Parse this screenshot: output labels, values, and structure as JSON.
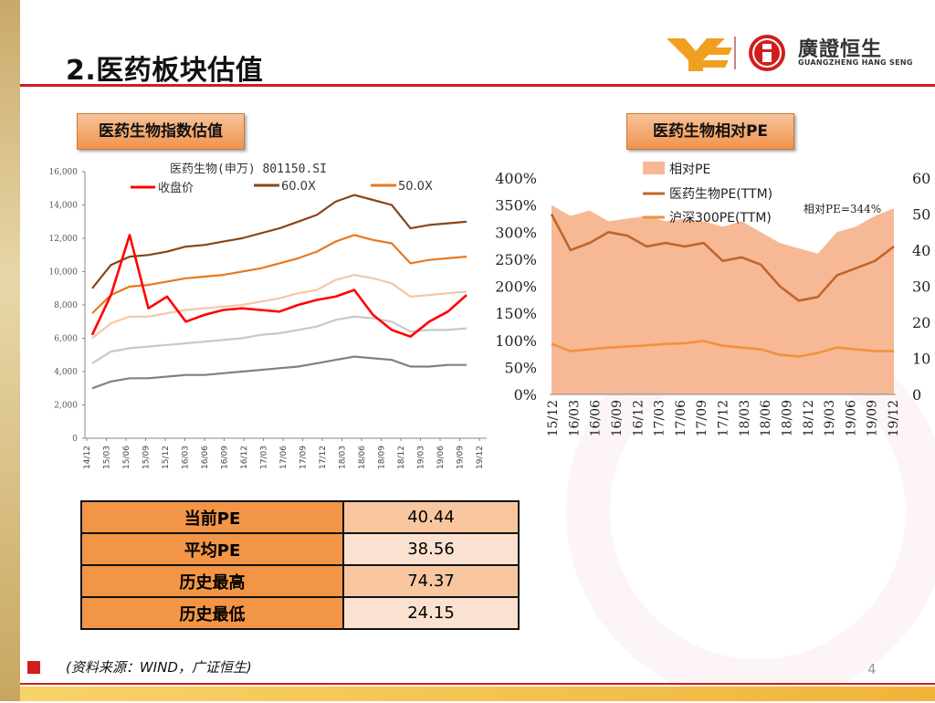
{
  "page": {
    "title": "2.医药板块估值",
    "page_number": "4",
    "source": "(资料来源：WIND，广证恒生)"
  },
  "logo": {
    "name_cn": "廣證恒生",
    "name_en": "GUANGZHENG HANG SENG",
    "colors": {
      "ye_mark": "#f0a020",
      "seal": "#d01e1e"
    }
  },
  "colors": {
    "accent_red": "#d01e1e",
    "tag_orange": "#f0934d",
    "table_key": "#f29546"
  },
  "sections": {
    "left_tag": "医药生物指数估值",
    "right_tag": "医药生物相对PE"
  },
  "table": {
    "rows": [
      {
        "label": "当前PE",
        "value": "40.44"
      },
      {
        "label": "平均PE",
        "value": "38.56"
      },
      {
        "label": "历史最高",
        "value": "74.37"
      },
      {
        "label": "历史最低",
        "value": "24.15"
      }
    ]
  },
  "chart_data": [
    {
      "type": "line",
      "title": "医药生物(申万) 801150.SI",
      "legend": [
        "收盘价",
        "60.0X",
        "50.0X"
      ],
      "ylim": [
        0,
        16000
      ],
      "yticks": [
        "0",
        "2,000",
        "4,000",
        "6,000",
        "8,000",
        "10,000",
        "12,000",
        "14,000",
        "16,000"
      ],
      "xticks": [
        "14/12",
        "15/03",
        "15/06",
        "15/09",
        "15/12",
        "16/03",
        "16/06",
        "16/09",
        "16/12",
        "17/03",
        "17/06",
        "17/09",
        "17/12",
        "18/03",
        "18/06",
        "18/09",
        "18/12",
        "19/03",
        "19/06",
        "19/09",
        "19/12"
      ],
      "series": [
        {
          "name": "收盘价",
          "color": "#ff0000",
          "values": [
            6200,
            8600,
            12200,
            7800,
            8500,
            7000,
            7400,
            7700,
            7800,
            7700,
            7600,
            8000,
            8300,
            8500,
            8900,
            7400,
            6500,
            6100,
            7000,
            7600,
            8600
          ]
        },
        {
          "name": "60.0X",
          "color": "#8b4513",
          "values": [
            9000,
            10400,
            10900,
            11000,
            11200,
            11500,
            11600,
            11800,
            12000,
            12300,
            12600,
            13000,
            13400,
            14200,
            14600,
            14300,
            14000,
            12600,
            12800,
            12900,
            13000
          ]
        },
        {
          "name": "50.0X",
          "color": "#e8781e",
          "values": [
            7500,
            8600,
            9100,
            9200,
            9400,
            9600,
            9700,
            9800,
            10000,
            10200,
            10500,
            10800,
            11200,
            11800,
            12200,
            11900,
            11700,
            10500,
            10700,
            10800,
            10900
          ]
        },
        {
          "name": "",
          "color": "#f5c7a6",
          "values": [
            6000,
            6900,
            7300,
            7300,
            7500,
            7700,
            7800,
            7900,
            8000,
            8200,
            8400,
            8700,
            8900,
            9500,
            9800,
            9600,
            9300,
            8500,
            8600,
            8700,
            8800
          ]
        },
        {
          "name": "",
          "color": "#c8c8c8",
          "values": [
            4500,
            5200,
            5400,
            5500,
            5600,
            5700,
            5800,
            5900,
            6000,
            6200,
            6300,
            6500,
            6700,
            7100,
            7300,
            7200,
            7000,
            6400,
            6500,
            6500,
            6600
          ]
        },
        {
          "name": "",
          "color": "#808080",
          "values": [
            3000,
            3400,
            3600,
            3600,
            3700,
            3800,
            3800,
            3900,
            4000,
            4100,
            4200,
            4300,
            4500,
            4700,
            4900,
            4800,
            4700,
            4300,
            4300,
            4400,
            4400
          ]
        }
      ]
    },
    {
      "type": "area",
      "legend": [
        "相对PE",
        "医药生物PE(TTM)",
        "沪深300PE(TTM)"
      ],
      "annotation": "相对PE=344%",
      "left_axis": {
        "ylim": [
          0,
          400
        ],
        "ticks": [
          "0%",
          "50%",
          "100%",
          "150%",
          "200%",
          "250%",
          "300%",
          "350%",
          "400%"
        ]
      },
      "right_axis": {
        "ylim": [
          0,
          60
        ],
        "ticks": [
          "0",
          "10",
          "20",
          "30",
          "40",
          "50",
          "60"
        ]
      },
      "xticks": [
        "15/12",
        "16/03",
        "16/06",
        "16/09",
        "16/12",
        "17/03",
        "17/06",
        "17/09",
        "17/12",
        "18/03",
        "18/06",
        "18/09",
        "18/12",
        "19/03",
        "19/06",
        "19/09",
        "19/12"
      ],
      "series": [
        {
          "name": "相对PE",
          "axis": "left",
          "color": "#f7b896",
          "values": [
            350,
            330,
            340,
            320,
            325,
            330,
            320,
            325,
            320,
            310,
            320,
            300,
            280,
            270,
            260,
            300,
            310,
            330,
            344
          ]
        },
        {
          "name": "医药生物PE(TTM)",
          "axis": "right",
          "color": "#c0662a",
          "values": [
            50,
            40,
            42,
            45,
            44,
            41,
            42,
            41,
            42,
            37,
            38,
            36,
            30,
            26,
            27,
            33,
            35,
            37,
            41
          ]
        },
        {
          "name": "沪深300PE(TTM)",
          "axis": "right",
          "color": "#f0923c",
          "values": [
            14,
            12,
            12.5,
            13,
            13.3,
            13.6,
            14,
            14.2,
            14.8,
            13.5,
            13,
            12.5,
            11,
            10.5,
            11.5,
            13,
            12.5,
            12,
            12
          ]
        }
      ]
    }
  ]
}
